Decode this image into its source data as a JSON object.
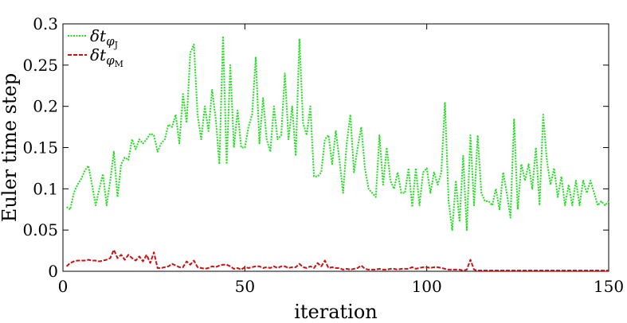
{
  "chart_data": {
    "type": "line",
    "title": "",
    "xlabel": "iteration",
    "ylabel": "Euler time step",
    "xlim": [
      0,
      150
    ],
    "ylim": [
      0,
      0.3
    ],
    "xticks": [
      0,
      50,
      100,
      150
    ],
    "xtick_labels": [
      "0",
      "50",
      "100",
      "150"
    ],
    "yticks": [
      0,
      0.05,
      0.1,
      0.15,
      0.2,
      0.25,
      0.3
    ],
    "ytick_labels": [
      "0",
      "0.05",
      "0.1",
      "0.15",
      "0.2",
      "0.25",
      "0.3"
    ],
    "grid": false,
    "legend_position": "top-left",
    "series": [
      {
        "name": "δt_φJ",
        "legend_main": "δt",
        "legend_sub": "φ",
        "legend_subsub": "J",
        "color": "#22dd22",
        "dash": "dotted",
        "x": [
          1,
          2,
          3,
          4,
          5,
          6,
          7,
          8,
          9,
          10,
          11,
          12,
          13,
          14,
          15,
          16,
          17,
          18,
          19,
          20,
          21,
          22,
          23,
          24,
          25,
          26,
          27,
          28,
          29,
          30,
          31,
          32,
          33,
          34,
          35,
          36,
          37,
          38,
          39,
          40,
          41,
          42,
          43,
          44,
          45,
          46,
          47,
          48,
          49,
          50,
          51,
          52,
          53,
          54,
          55,
          56,
          57,
          58,
          59,
          60,
          61,
          62,
          63,
          64,
          65,
          66,
          67,
          68,
          69,
          70,
          71,
          72,
          73,
          74,
          75,
          76,
          77,
          78,
          79,
          80,
          81,
          82,
          83,
          84,
          85,
          86,
          87,
          88,
          89,
          90,
          91,
          92,
          93,
          94,
          95,
          96,
          97,
          98,
          99,
          100,
          101,
          102,
          103,
          104,
          105,
          106,
          107,
          108,
          109,
          110,
          111,
          112,
          113,
          114,
          115,
          116,
          117,
          118,
          119,
          120,
          121,
          122,
          123,
          124,
          125,
          126,
          127,
          128,
          129,
          130,
          131,
          132,
          133,
          134,
          135,
          136,
          137,
          138,
          139,
          140,
          141,
          142,
          143,
          144,
          145,
          146,
          147,
          148,
          149,
          150
        ],
        "y": [
          0.078,
          0.075,
          0.095,
          0.105,
          0.112,
          0.122,
          0.128,
          0.105,
          0.08,
          0.1,
          0.118,
          0.08,
          0.11,
          0.145,
          0.09,
          0.13,
          0.138,
          0.135,
          0.16,
          0.148,
          0.16,
          0.155,
          0.16,
          0.167,
          0.165,
          0.145,
          0.155,
          0.16,
          0.178,
          0.175,
          0.19,
          0.155,
          0.215,
          0.18,
          0.265,
          0.275,
          0.19,
          0.16,
          0.2,
          0.17,
          0.22,
          0.185,
          0.13,
          0.285,
          0.13,
          0.25,
          0.15,
          0.195,
          0.15,
          0.15,
          0.175,
          0.19,
          0.26,
          0.155,
          0.21,
          0.16,
          0.145,
          0.2,
          0.16,
          0.165,
          0.24,
          0.16,
          0.2,
          0.14,
          0.282,
          0.18,
          0.165,
          0.2,
          0.115,
          0.115,
          0.12,
          0.16,
          0.165,
          0.13,
          0.17,
          0.135,
          0.095,
          0.155,
          0.19,
          0.12,
          0.15,
          0.175,
          0.125,
          0.1,
          0.095,
          0.09,
          0.165,
          0.105,
          0.15,
          0.11,
          0.1,
          0.12,
          0.095,
          0.095,
          0.125,
          0.078,
          0.125,
          0.08,
          0.12,
          0.125,
          0.095,
          0.12,
          0.105,
          0.12,
          0.205,
          0.085,
          0.05,
          0.11,
          0.06,
          0.14,
          0.05,
          0.165,
          0.08,
          0.165,
          0.095,
          0.085,
          0.085,
          0.08,
          0.1,
          0.075,
          0.12,
          0.095,
          0.065,
          0.185,
          0.075,
          0.13,
          0.11,
          0.13,
          0.1,
          0.15,
          0.08,
          0.19,
          0.135,
          0.105,
          0.125,
          0.09,
          0.115,
          0.08,
          0.105,
          0.08,
          0.11,
          0.08,
          0.11,
          0.095,
          0.11,
          0.095,
          0.08,
          0.085,
          0.08,
          0.085
        ]
      },
      {
        "name": "δt_φM",
        "legend_main": "δt",
        "legend_sub": "φ",
        "legend_subsub": "M",
        "color": "#cc1111",
        "dash": "dashed",
        "x": [
          1,
          2,
          3,
          4,
          5,
          6,
          7,
          8,
          9,
          10,
          11,
          12,
          13,
          14,
          15,
          16,
          17,
          18,
          19,
          20,
          21,
          22,
          23,
          24,
          25,
          26,
          27,
          28,
          29,
          30,
          31,
          32,
          33,
          34,
          35,
          36,
          37,
          38,
          39,
          40,
          41,
          42,
          43,
          44,
          45,
          46,
          47,
          48,
          49,
          50,
          51,
          52,
          53,
          54,
          55,
          56,
          57,
          58,
          59,
          60,
          61,
          62,
          63,
          64,
          65,
          66,
          67,
          68,
          69,
          70,
          71,
          72,
          73,
          74,
          75,
          76,
          77,
          78,
          79,
          80,
          81,
          82,
          83,
          84,
          85,
          86,
          87,
          88,
          89,
          90,
          91,
          92,
          93,
          94,
          95,
          96,
          97,
          98,
          99,
          100,
          101,
          102,
          103,
          104,
          105,
          106,
          107,
          108,
          109,
          110,
          111,
          112,
          113,
          114,
          115,
          116,
          117,
          118,
          119,
          120,
          121,
          122,
          123,
          124,
          125,
          126,
          127,
          128,
          129,
          130,
          131,
          132,
          133,
          134,
          135,
          136,
          137,
          138,
          139,
          140,
          141,
          142,
          143,
          144,
          145,
          146,
          147,
          148,
          149,
          150
        ],
        "y": [
          0.006,
          0.01,
          0.012,
          0.013,
          0.013,
          0.013,
          0.014,
          0.013,
          0.013,
          0.012,
          0.013,
          0.014,
          0.016,
          0.026,
          0.016,
          0.02,
          0.014,
          0.02,
          0.016,
          0.013,
          0.018,
          0.012,
          0.02,
          0.01,
          0.023,
          0.004,
          0.004,
          0.005,
          0.006,
          0.009,
          0.007,
          0.005,
          0.005,
          0.012,
          0.008,
          0.013,
          0.005,
          0.004,
          0.003,
          0.004,
          0.006,
          0.005,
          0.007,
          0.008,
          0.008,
          0.006,
          0.003,
          0.004,
          0.002,
          0.005,
          0.004,
          0.005,
          0.006,
          0.006,
          0.004,
          0.005,
          0.004,
          0.006,
          0.004,
          0.006,
          0.006,
          0.004,
          0.005,
          0.005,
          0.009,
          0.005,
          0.004,
          0.006,
          0.004,
          0.01,
          0.006,
          0.013,
          0.004,
          0.005,
          0.004,
          0.004,
          0.002,
          0.003,
          0.002,
          0.003,
          0.004,
          0.007,
          0.003,
          0.002,
          0.002,
          0.002,
          0.003,
          0.002,
          0.002,
          0.003,
          0.003,
          0.002,
          0.003,
          0.003,
          0.003,
          0.005,
          0.003,
          0.004,
          0.005,
          0.005,
          0.004,
          0.005,
          0.005,
          0.004,
          0.003,
          0.002,
          0.002,
          0.002,
          0.002,
          0.001,
          0.002,
          0.014,
          0.002,
          0.001,
          0.001,
          0.001,
          0.001,
          0.001,
          0.001,
          0.001,
          0.001,
          0.001,
          0.001,
          0.001,
          0.001,
          0.001,
          0.001,
          0.001,
          0.001,
          0.001,
          0.001,
          0.001,
          0.001,
          0.001,
          0.001,
          0.001,
          0.001,
          0.001,
          0.001,
          0.001,
          0.001,
          0.001,
          0.001,
          0.001,
          0.001,
          0.001,
          0.001,
          0.001,
          0.001,
          0.001
        ]
      }
    ]
  }
}
